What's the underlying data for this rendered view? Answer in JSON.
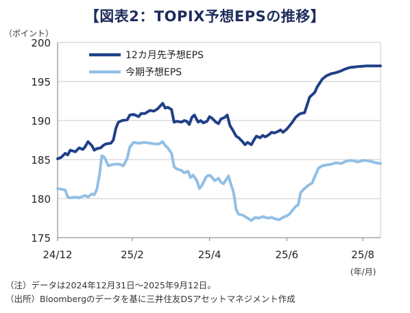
{
  "header": {
    "title": "【図表2：TOPIX予想EPSの推移】",
    "y_unit": "（ポイント）",
    "x_unit": "(年/月)"
  },
  "notes": {
    "note": "（注）データは2024年12月31日～2025年9月12日。",
    "source": "（出所）Bloombergのデータを基に三井住友DSアセットマネジメント作成"
  },
  "colors": {
    "series_12m": "#1f3f87",
    "series_current": "#91bfe6",
    "grid": "#c8c8c8",
    "axis": "#7a7a7a",
    "title": "#1f2d5c"
  },
  "chart_data": {
    "type": "line",
    "title": "【図表2：TOPIX予想EPSの推移】",
    "xlabel": "",
    "ylabel": "",
    "x_unit": "(年/月)",
    "y_unit": "（ポイント）",
    "x_domain": [
      "2024-12-31",
      "2025-09-12"
    ],
    "ylim": [
      175,
      200
    ],
    "yticks": [
      175,
      180,
      185,
      190,
      195,
      200
    ],
    "xticks": [
      {
        "label": "24/12",
        "date": "2024-12-31"
      },
      {
        "label": "25/2",
        "date": "2025-02-28"
      },
      {
        "label": "25/4",
        "date": "2025-04-30"
      },
      {
        "label": "25/6",
        "date": "2025-06-30"
      },
      {
        "label": "25/8",
        "date": "2025-08-29"
      }
    ],
    "grid": true,
    "legend_position": "top-left",
    "series": [
      {
        "name": "12カ月先予想EPS",
        "color": "#1f3f87",
        "points": [
          [
            "2024-12-31",
            185.1
          ],
          [
            "2025-01-03",
            185.3
          ],
          [
            "2025-01-06",
            185.8
          ],
          [
            "2025-01-08",
            185.6
          ],
          [
            "2025-01-10",
            186.2
          ],
          [
            "2025-01-14",
            186.0
          ],
          [
            "2025-01-17",
            186.5
          ],
          [
            "2025-01-20",
            186.3
          ],
          [
            "2025-01-22",
            186.7
          ],
          [
            "2025-01-24",
            187.3
          ],
          [
            "2025-01-27",
            186.8
          ],
          [
            "2025-01-29",
            186.2
          ],
          [
            "2025-01-31",
            186.4
          ],
          [
            "2025-02-03",
            186.5
          ],
          [
            "2025-02-05",
            186.8
          ],
          [
            "2025-02-07",
            187.0
          ],
          [
            "2025-02-11",
            187.1
          ],
          [
            "2025-02-13",
            187.5
          ],
          [
            "2025-02-15",
            189.0
          ],
          [
            "2025-02-17",
            189.8
          ],
          [
            "2025-02-20",
            190.0
          ],
          [
            "2025-02-24",
            190.1
          ],
          [
            "2025-02-26",
            190.7
          ],
          [
            "2025-03-01",
            190.8
          ],
          [
            "2025-03-05",
            190.5
          ],
          [
            "2025-03-07",
            190.9
          ],
          [
            "2025-03-10",
            190.9
          ],
          [
            "2025-03-14",
            191.3
          ],
          [
            "2025-03-17",
            191.2
          ],
          [
            "2025-03-20",
            191.5
          ],
          [
            "2025-03-24",
            192.2
          ],
          [
            "2025-03-26",
            191.6
          ],
          [
            "2025-03-28",
            191.7
          ],
          [
            "2025-03-31",
            191.4
          ],
          [
            "2025-04-02",
            189.8
          ],
          [
            "2025-04-04",
            189.9
          ],
          [
            "2025-04-08",
            189.8
          ],
          [
            "2025-04-10",
            190.0
          ],
          [
            "2025-04-12",
            189.9
          ],
          [
            "2025-04-14",
            189.5
          ],
          [
            "2025-04-16",
            190.4
          ],
          [
            "2025-04-18",
            190.7
          ],
          [
            "2025-04-21",
            189.8
          ],
          [
            "2025-04-23",
            190.0
          ],
          [
            "2025-04-25",
            189.7
          ],
          [
            "2025-04-28",
            189.9
          ],
          [
            "2025-04-30",
            190.5
          ],
          [
            "2025-05-02",
            190.3
          ],
          [
            "2025-05-05",
            189.8
          ],
          [
            "2025-05-07",
            189.6
          ],
          [
            "2025-05-09",
            190.2
          ],
          [
            "2025-05-12",
            190.4
          ],
          [
            "2025-05-14",
            190.7
          ],
          [
            "2025-05-16",
            189.4
          ],
          [
            "2025-05-19",
            188.6
          ],
          [
            "2025-05-21",
            188.0
          ],
          [
            "2025-05-23",
            187.8
          ],
          [
            "2025-05-26",
            187.3
          ],
          [
            "2025-05-28",
            186.9
          ],
          [
            "2025-05-30",
            187.2
          ],
          [
            "2025-06-02",
            186.9
          ],
          [
            "2025-06-04",
            187.5
          ],
          [
            "2025-06-06",
            188.0
          ],
          [
            "2025-06-09",
            187.8
          ],
          [
            "2025-06-11",
            188.1
          ],
          [
            "2025-06-13",
            187.9
          ],
          [
            "2025-06-16",
            188.2
          ],
          [
            "2025-06-18",
            188.5
          ],
          [
            "2025-06-20",
            188.4
          ],
          [
            "2025-06-23",
            188.6
          ],
          [
            "2025-06-25",
            188.8
          ],
          [
            "2025-06-27",
            188.5
          ],
          [
            "2025-06-30",
            188.9
          ],
          [
            "2025-07-02",
            189.3
          ],
          [
            "2025-07-04",
            189.7
          ],
          [
            "2025-07-07",
            190.4
          ],
          [
            "2025-07-09",
            190.7
          ],
          [
            "2025-07-11",
            190.9
          ],
          [
            "2025-07-14",
            191.0
          ],
          [
            "2025-07-16",
            192.0
          ],
          [
            "2025-07-18",
            193.0
          ],
          [
            "2025-07-22",
            193.6
          ],
          [
            "2025-07-24",
            194.3
          ],
          [
            "2025-07-28",
            195.3
          ],
          [
            "2025-07-31",
            195.7
          ],
          [
            "2025-08-04",
            196.0
          ],
          [
            "2025-08-07",
            196.1
          ],
          [
            "2025-08-11",
            196.3
          ],
          [
            "2025-08-15",
            196.6
          ],
          [
            "2025-08-19",
            196.8
          ],
          [
            "2025-08-25",
            196.9
          ],
          [
            "2025-09-01",
            197.0
          ],
          [
            "2025-09-08",
            197.0
          ],
          [
            "2025-09-12",
            197.0
          ]
        ]
      },
      {
        "name": "今期予想EPS",
        "color": "#91bfe6",
        "points": [
          [
            "2024-12-31",
            181.3
          ],
          [
            "2025-01-03",
            181.2
          ],
          [
            "2025-01-06",
            181.1
          ],
          [
            "2025-01-08",
            180.2
          ],
          [
            "2025-01-10",
            180.1
          ],
          [
            "2025-01-14",
            180.2
          ],
          [
            "2025-01-17",
            180.1
          ],
          [
            "2025-01-20",
            180.3
          ],
          [
            "2025-01-22",
            180.4
          ],
          [
            "2025-01-24",
            180.2
          ],
          [
            "2025-01-27",
            180.6
          ],
          [
            "2025-01-29",
            180.5
          ],
          [
            "2025-01-31",
            181.2
          ],
          [
            "2025-02-02",
            183.0
          ],
          [
            "2025-02-04",
            185.5
          ],
          [
            "2025-02-06",
            185.3
          ],
          [
            "2025-02-09",
            184.2
          ],
          [
            "2025-02-11",
            184.3
          ],
          [
            "2025-02-14",
            184.4
          ],
          [
            "2025-02-18",
            184.4
          ],
          [
            "2025-02-21",
            184.2
          ],
          [
            "2025-02-24",
            185.2
          ],
          [
            "2025-02-26",
            186.6
          ],
          [
            "2025-03-01",
            187.2
          ],
          [
            "2025-03-05",
            187.1
          ],
          [
            "2025-03-10",
            187.2
          ],
          [
            "2025-03-14",
            187.1
          ],
          [
            "2025-03-18",
            187.0
          ],
          [
            "2025-03-21",
            187.0
          ],
          [
            "2025-03-24",
            187.3
          ],
          [
            "2025-03-26",
            186.8
          ],
          [
            "2025-03-28",
            186.5
          ],
          [
            "2025-03-31",
            185.8
          ],
          [
            "2025-04-02",
            184.1
          ],
          [
            "2025-04-04",
            183.8
          ],
          [
            "2025-04-08",
            183.6
          ],
          [
            "2025-04-10",
            183.3
          ],
          [
            "2025-04-13",
            183.5
          ],
          [
            "2025-04-15",
            182.7
          ],
          [
            "2025-04-17",
            183.0
          ],
          [
            "2025-04-20",
            182.3
          ],
          [
            "2025-04-22",
            181.3
          ],
          [
            "2025-04-24",
            181.7
          ],
          [
            "2025-04-27",
            182.7
          ],
          [
            "2025-04-29",
            183.0
          ],
          [
            "2025-05-01",
            182.9
          ],
          [
            "2025-05-04",
            182.3
          ],
          [
            "2025-05-07",
            182.6
          ],
          [
            "2025-05-09",
            182.1
          ],
          [
            "2025-05-11",
            181.9
          ],
          [
            "2025-05-13",
            182.4
          ],
          [
            "2025-05-15",
            182.9
          ],
          [
            "2025-05-17",
            181.8
          ],
          [
            "2025-05-19",
            180.8
          ],
          [
            "2025-05-21",
            178.6
          ],
          [
            "2025-05-23",
            178.0
          ],
          [
            "2025-05-26",
            177.9
          ],
          [
            "2025-05-28",
            177.7
          ],
          [
            "2025-05-30",
            177.5
          ],
          [
            "2025-06-02",
            177.2
          ],
          [
            "2025-06-05",
            177.6
          ],
          [
            "2025-06-08",
            177.5
          ],
          [
            "2025-06-11",
            177.7
          ],
          [
            "2025-06-15",
            177.5
          ],
          [
            "2025-06-18",
            177.6
          ],
          [
            "2025-06-21",
            177.4
          ],
          [
            "2025-06-24",
            177.3
          ],
          [
            "2025-06-27",
            177.6
          ],
          [
            "2025-06-30",
            177.8
          ],
          [
            "2025-07-02",
            178.0
          ],
          [
            "2025-07-04",
            178.4
          ],
          [
            "2025-07-07",
            179.0
          ],
          [
            "2025-07-09",
            179.2
          ],
          [
            "2025-07-11",
            180.8
          ],
          [
            "2025-07-14",
            181.3
          ],
          [
            "2025-07-17",
            181.7
          ],
          [
            "2025-07-20",
            182.0
          ],
          [
            "2025-07-22",
            182.8
          ],
          [
            "2025-07-25",
            183.9
          ],
          [
            "2025-07-28",
            184.2
          ],
          [
            "2025-07-31",
            184.3
          ],
          [
            "2025-08-04",
            184.4
          ],
          [
            "2025-08-08",
            184.6
          ],
          [
            "2025-08-12",
            184.5
          ],
          [
            "2025-08-16",
            184.8
          ],
          [
            "2025-08-20",
            184.9
          ],
          [
            "2025-08-25",
            184.7
          ],
          [
            "2025-08-30",
            184.9
          ],
          [
            "2025-09-04",
            184.8
          ],
          [
            "2025-09-08",
            184.6
          ],
          [
            "2025-09-12",
            184.5
          ]
        ]
      }
    ]
  }
}
